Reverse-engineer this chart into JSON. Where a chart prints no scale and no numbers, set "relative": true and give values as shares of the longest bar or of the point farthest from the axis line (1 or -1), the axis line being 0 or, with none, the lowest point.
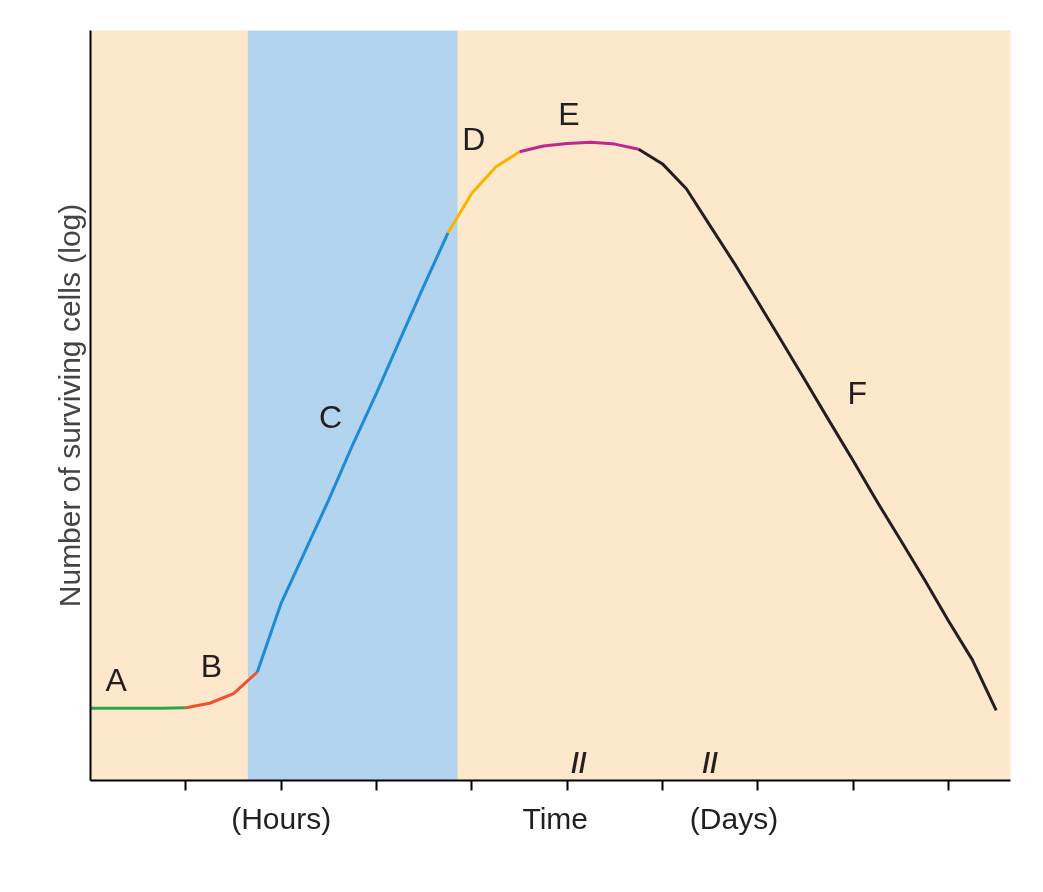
{
  "chart_data": {
    "type": "line",
    "relative": true,
    "ylabel": "Number of surviving cells (log)",
    "xlabel": "Time",
    "categories": [
      null,
      null,
      null,
      null,
      null,
      null,
      null,
      null,
      null,
      null,
      null,
      null,
      null,
      null,
      null,
      null,
      null,
      null,
      null,
      null,
      null,
      null,
      null,
      null,
      null,
      null,
      null,
      null,
      null,
      null,
      null,
      null,
      null,
      null,
      null,
      null,
      null,
      null,
      null
    ],
    "grid": false,
    "marker": "none",
    "line_style": "solid",
    "series": [
      {
        "name": "A",
        "color": "#2ca44a",
        "values": [
          0.113,
          0.113,
          0.113,
          0.113,
          0.114,
          null,
          null,
          null,
          null,
          null,
          null,
          null,
          null,
          null,
          null,
          null,
          null,
          null,
          null,
          null,
          null,
          null,
          null,
          null,
          null,
          null,
          null,
          null,
          null,
          null,
          null,
          null,
          null,
          null,
          null,
          null,
          null,
          null,
          null
        ]
      },
      {
        "name": "B",
        "color": "#f0502a",
        "values": [
          null,
          null,
          null,
          null,
          0.114,
          0.121,
          0.136,
          0.17,
          null,
          null,
          null,
          null,
          null,
          null,
          null,
          null,
          null,
          null,
          null,
          null,
          null,
          null,
          null,
          null,
          null,
          null,
          null,
          null,
          null,
          null,
          null,
          null,
          null,
          null,
          null,
          null,
          null,
          null,
          null
        ]
      },
      {
        "name": "C",
        "color": "#1f8ad6",
        "values": [
          null,
          null,
          null,
          null,
          null,
          null,
          null,
          0.17,
          0.278,
          0.359,
          0.44,
          0.526,
          0.607,
          0.692,
          0.776,
          0.858,
          null,
          null,
          null,
          null,
          null,
          null,
          null,
          null,
          null,
          null,
          null,
          null,
          null,
          null,
          null,
          null,
          null,
          null,
          null,
          null,
          null,
          null,
          null
        ]
      },
      {
        "name": "D",
        "color": "#f7b500",
        "values": [
          null,
          null,
          null,
          null,
          null,
          null,
          null,
          null,
          null,
          null,
          null,
          null,
          null,
          null,
          null,
          0.858,
          0.92,
          0.961,
          0.985,
          null,
          null,
          null,
          null,
          null,
          null,
          null,
          null,
          null,
          null,
          null,
          null,
          null,
          null,
          null,
          null,
          null,
          null,
          null,
          null
        ]
      },
      {
        "name": "E",
        "color": "#c0268e",
        "values": [
          null,
          null,
          null,
          null,
          null,
          null,
          null,
          null,
          null,
          null,
          null,
          null,
          null,
          null,
          null,
          null,
          null,
          null,
          0.985,
          0.994,
          0.998,
          1.0,
          0.997,
          0.989,
          null,
          null,
          null,
          null,
          null,
          null,
          null,
          null,
          null,
          null,
          null,
          null,
          null,
          null,
          null
        ]
      },
      {
        "name": "F",
        "color": "#231f20",
        "values": [
          null,
          null,
          null,
          null,
          null,
          null,
          null,
          null,
          null,
          null,
          null,
          null,
          null,
          null,
          null,
          null,
          null,
          null,
          null,
          null,
          null,
          null,
          null,
          0.989,
          0.966,
          0.927,
          0.869,
          0.811,
          0.75,
          0.688,
          0.626,
          0.563,
          0.501,
          0.437,
          0.376,
          0.314,
          0.25,
          0.189,
          0.11
        ]
      }
    ],
    "annotations": [
      "(Hours)",
      "(Days)",
      "//",
      "//"
    ]
  }
}
